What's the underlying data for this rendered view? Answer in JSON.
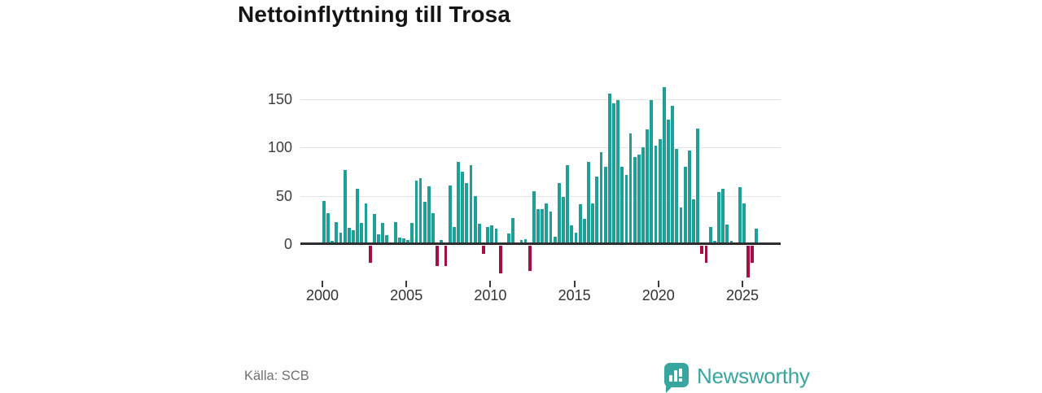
{
  "title": "Nettoinflyttning till Trosa",
  "footer": {
    "source": "Källa: SCB"
  },
  "brand": {
    "name": "Newsworthy",
    "icon": "bar-chart-speech-bubble-icon"
  },
  "colors": {
    "positive_bar": "#1ea099",
    "negative_bar": "#a21045",
    "axis": "#2e2e2e",
    "grid": "#e4e4e4",
    "tick_label": "#333333",
    "title_text": "#141414",
    "source_text": "#707070",
    "brand_teal": "#38a59e"
  },
  "chart_data": {
    "type": "bar",
    "title": "Nettoinflyttning till Trosa",
    "frequency": "quarterly",
    "grid": "horizontal",
    "legend": "none",
    "ylim": [
      -45,
      172
    ],
    "y_ticks": [
      0,
      50,
      100,
      150
    ],
    "x_ticks": [
      2000,
      2005,
      2010,
      2015,
      2020,
      2025
    ],
    "series": [
      {
        "year": 2000,
        "values": [
          45,
          32,
          3,
          23
        ]
      },
      {
        "year": 2001,
        "values": [
          12,
          77,
          17,
          14
        ]
      },
      {
        "year": 2002,
        "values": [
          57,
          22,
          42,
          -20
        ]
      },
      {
        "year": 2003,
        "values": [
          31,
          10,
          22,
          9
        ]
      },
      {
        "year": 2004,
        "values": [
          2,
          23,
          7,
          6
        ]
      },
      {
        "year": 2005,
        "values": [
          4,
          22,
          66,
          68
        ]
      },
      {
        "year": 2006,
        "values": [
          44,
          60,
          32,
          -24
        ]
      },
      {
        "year": 2007,
        "values": [
          4,
          -24,
          61,
          18
        ]
      },
      {
        "year": 2008,
        "values": [
          85,
          75,
          63,
          82
        ]
      },
      {
        "year": 2009,
        "values": [
          50,
          21,
          -11,
          18
        ]
      },
      {
        "year": 2010,
        "values": [
          19,
          16,
          -31,
          0
        ]
      },
      {
        "year": 2011,
        "values": [
          11,
          27,
          0,
          4
        ]
      },
      {
        "year": 2012,
        "values": [
          5,
          -29,
          55,
          36
        ]
      },
      {
        "year": 2013,
        "values": [
          36,
          42,
          34,
          8
        ]
      },
      {
        "year": 2014,
        "values": [
          63,
          49,
          82,
          19
        ]
      },
      {
        "year": 2015,
        "values": [
          12,
          41,
          26,
          85
        ]
      },
      {
        "year": 2016,
        "values": [
          42,
          70,
          95,
          80
        ]
      },
      {
        "year": 2017,
        "values": [
          156,
          146,
          149,
          80
        ]
      },
      {
        "year": 2018,
        "values": [
          72,
          115,
          90,
          93
        ]
      },
      {
        "year": 2019,
        "values": [
          100,
          119,
          149,
          102
        ]
      },
      {
        "year": 2020,
        "values": [
          109,
          163,
          129,
          143
        ]
      },
      {
        "year": 2021,
        "values": [
          99,
          38,
          80,
          97
        ]
      },
      {
        "year": 2022,
        "values": [
          46,
          120,
          -11,
          -20
        ]
      },
      {
        "year": 2023,
        "values": [
          18,
          3,
          54,
          57
        ]
      },
      {
        "year": 2024,
        "values": [
          20,
          3,
          0,
          59
        ]
      },
      {
        "year": 2025,
        "values": [
          42,
          -35,
          -20,
          16
        ]
      }
    ]
  }
}
